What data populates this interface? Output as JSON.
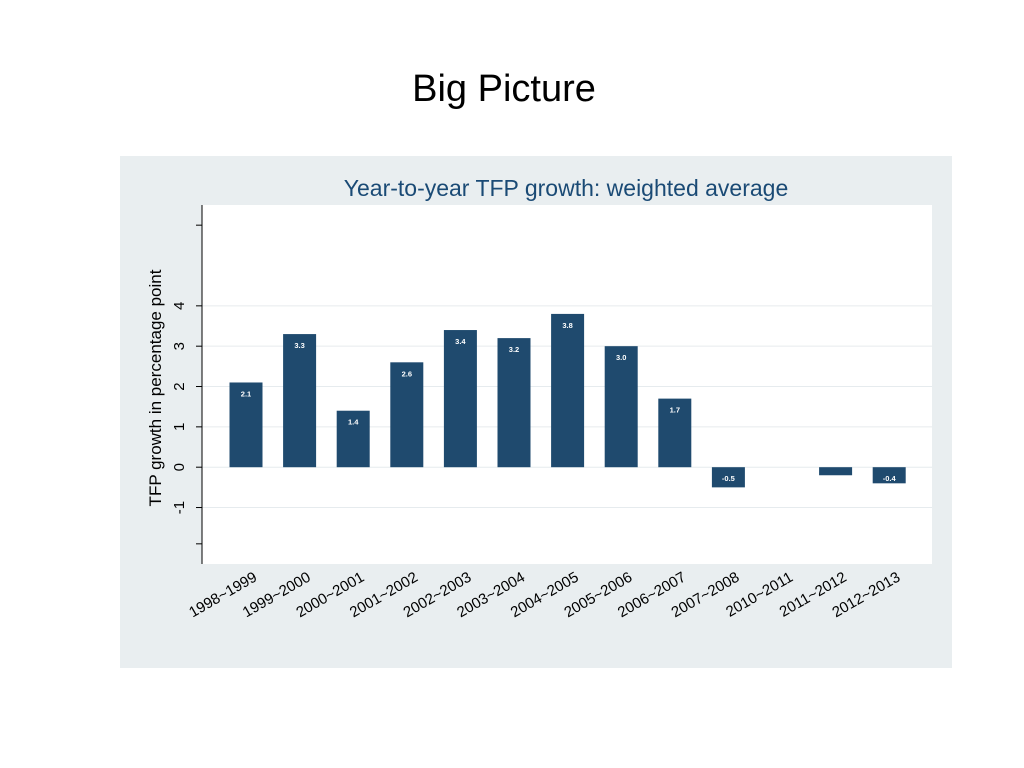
{
  "slide": {
    "title": "Big Picture"
  },
  "colors": {
    "panel_background": "#e9eef0",
    "plot_background": "#ffffff",
    "bar": "#1f4a6e",
    "gridline": "#e6ebee",
    "title_text": "#1a4a75",
    "axis_text": "#000000"
  },
  "chart_data": {
    "type": "bar",
    "title": "Year-to-year TFP growth: weighted average",
    "xlabel": "",
    "ylabel": "TFP growth in percentage point",
    "categories": [
      "1998~1999",
      "1999~2000",
      "2000~2001",
      "2001~2002",
      "2002~2003",
      "2003~2004",
      "2004~2005",
      "2005~2006",
      "2006~2007",
      "2007~2008",
      "2010~2011",
      "2011~2012",
      "2012~2013"
    ],
    "values": [
      2.1,
      3.3,
      1.4,
      2.6,
      3.4,
      3.2,
      3.8,
      3.0,
      1.7,
      -0.5,
      0.0,
      -0.2,
      -0.4
    ],
    "data_labels": [
      "2.1",
      "3.3",
      "1.4",
      "2.6",
      "3.4",
      "3.2",
      "3.8",
      "3.0",
      "1.7",
      "-0.5",
      "",
      "",
      "-0.4"
    ],
    "yticks": [
      -1,
      0,
      1,
      2,
      3,
      4
    ],
    "ylim": [
      -2.4,
      6.5
    ],
    "grid": true,
    "legend": "none"
  }
}
